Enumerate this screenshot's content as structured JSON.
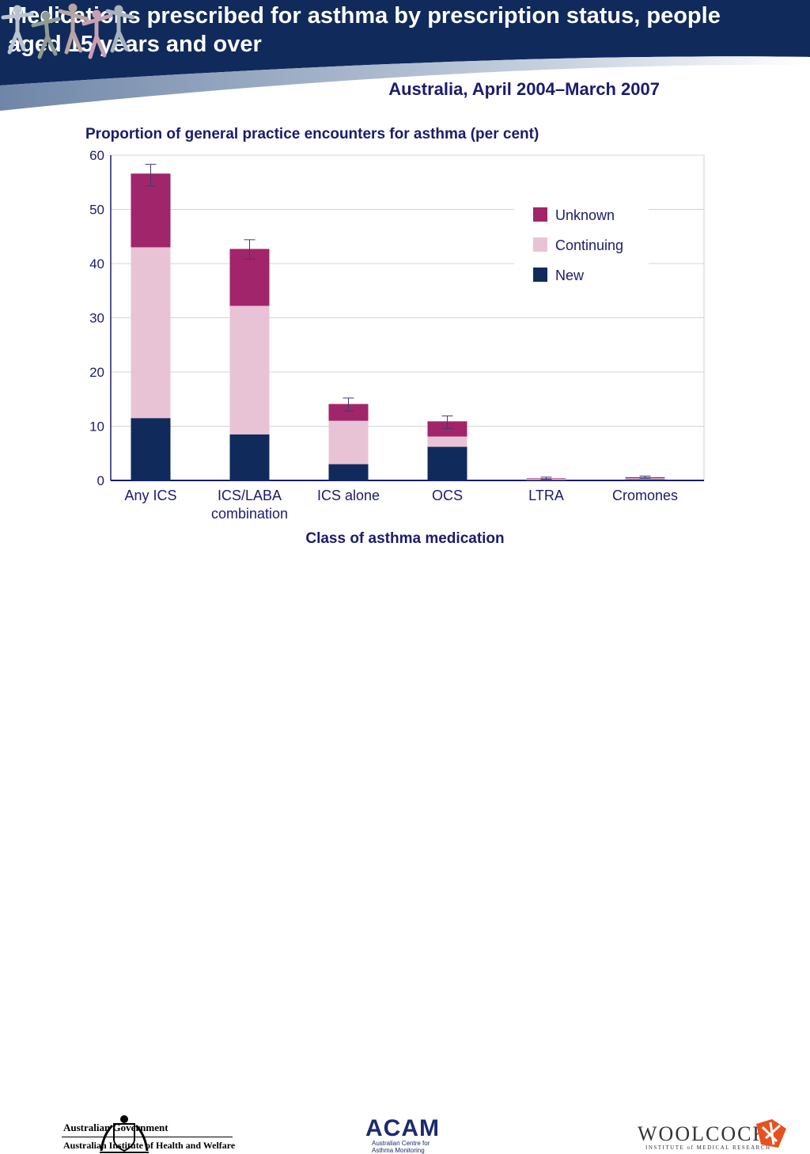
{
  "slide": {
    "title": "Medications prescribed for asthma by prescription status, people aged 15 years and over",
    "subtitle": "Australia, April 2004–March 2007",
    "colors": {
      "header": "#102a5c",
      "accent": "#8ea3bf"
    }
  },
  "chart_data": {
    "type": "bar",
    "stacked": true,
    "title": "Proportion of general practice encounters for asthma (per cent)",
    "xlabel": "Class of asthma medication",
    "ylabel": "",
    "ylim": [
      0,
      60
    ],
    "yticks": [
      0,
      10,
      20,
      30,
      40,
      50,
      60
    ],
    "grid": true,
    "legend_position": "top-right",
    "categories": [
      {
        "lines": [
          "Any ICS"
        ]
      },
      {
        "lines": [
          "ICS/LABA",
          "combination"
        ]
      },
      {
        "lines": [
          "ICS alone"
        ]
      },
      {
        "lines": [
          "OCS"
        ]
      },
      {
        "lines": [
          "LTRA"
        ]
      },
      {
        "lines": [
          "Cromones"
        ]
      }
    ],
    "series": [
      {
        "name": "New",
        "color": "#102a5c",
        "values": [
          11.5,
          8.5,
          3.0,
          6.2,
          0.1,
          0.2
        ]
      },
      {
        "name": "Continuing",
        "color": "#e8c3d5",
        "values": [
          31.5,
          23.7,
          8.0,
          1.9,
          0.2,
          0.2
        ]
      },
      {
        "name": "Unknown",
        "color": "#a1256a",
        "values": [
          13.6,
          10.5,
          3.1,
          2.8,
          0.1,
          0.2
        ]
      }
    ],
    "error_bars": [
      {
        "low": 54.3,
        "high": 58.3
      },
      {
        "low": 40.8,
        "high": 44.4
      },
      {
        "low": 12.8,
        "high": 15.2
      },
      {
        "low": 9.6,
        "high": 11.9
      },
      {
        "low": 0.2,
        "high": 0.6
      },
      {
        "low": 0.4,
        "high": 0.8
      }
    ]
  },
  "footer": {
    "gov_line1": "Australian Government",
    "gov_line2": "Australian Institute of Health and Welfare",
    "acam_name": "ACAM",
    "acam_sub1": "Australian Centre for",
    "acam_sub2": "Asthma Monitoring",
    "woolcock_name": "WOOLCOCK",
    "woolcock_sub": "INSTITUTE of MEDICAL RESEARCH"
  }
}
